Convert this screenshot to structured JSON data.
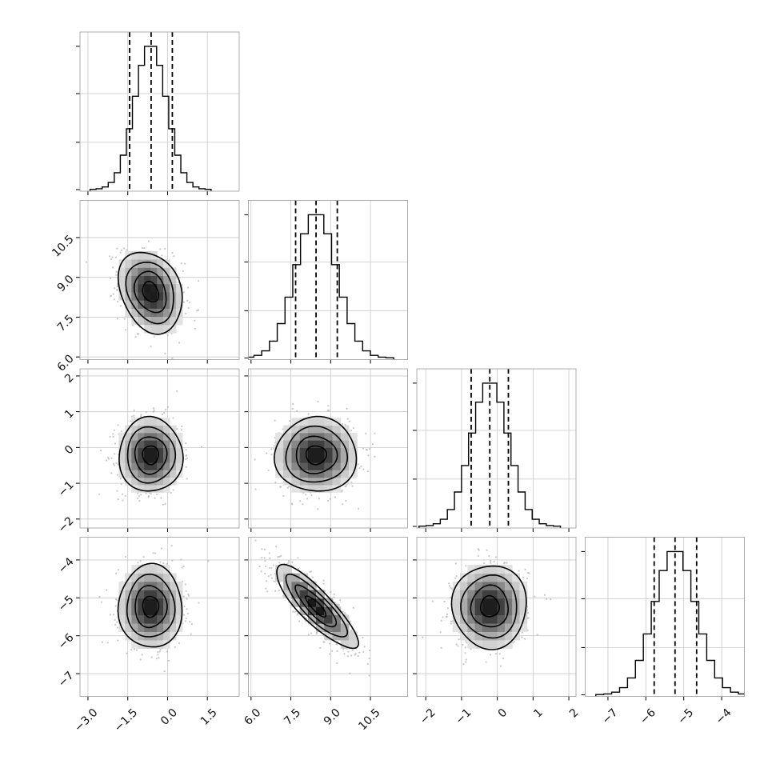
{
  "figure": {
    "type": "corner_plot",
    "n_params": 4,
    "title": ""
  },
  "colors": {
    "line": "#000000",
    "grid": "#c8c8c8",
    "frame": "#999999",
    "scatter": "#b0b0b0",
    "density_dark": "#111111"
  },
  "chart_data": {
    "type": "corner",
    "title": "",
    "params": [
      {
        "name": "",
        "range": [
          -3.3,
          2.7
        ],
        "ticks": [
          -3.0,
          -1.5,
          0.0,
          1.5
        ],
        "tick_labels": [
          "−3.0",
          "−1.5",
          "0.0",
          "1.5"
        ],
        "mean": -0.64,
        "sd": 0.6,
        "quantiles": [
          -1.43,
          -0.62,
          0.18
        ]
      },
      {
        "name": "",
        "range": [
          5.9,
          11.9
        ],
        "ticks": [
          6.0,
          7.5,
          9.0,
          10.5
        ],
        "tick_labels": [
          "6.0",
          "7.5",
          "9.0",
          "10.5"
        ],
        "mean": 8.45,
        "sd": 0.77,
        "quantiles": [
          7.68,
          8.45,
          9.25
        ]
      },
      {
        "name": "",
        "range": [
          -2.25,
          2.2
        ],
        "ticks": [
          -2,
          -1,
          0,
          1,
          2
        ],
        "tick_labels": [
          "−2",
          "−1",
          "0",
          "1",
          "2"
        ],
        "mean": -0.21,
        "sd": 0.52,
        "quantiles": [
          -0.73,
          -0.21,
          0.31
        ]
      },
      {
        "name": "",
        "range": [
          -7.6,
          -3.4
        ],
        "ticks": [
          -7,
          -6,
          -5,
          -4
        ],
        "tick_labels": [
          "−7",
          "−6",
          "−5",
          "−4"
        ],
        "mean": -5.23,
        "sd": 0.55,
        "quantiles": [
          -5.78,
          -5.23,
          -4.66
        ]
      }
    ],
    "correlations": [
      [
        1.0,
        -0.25,
        0.0,
        0.0
      ],
      [
        -0.25,
        1.0,
        0.0,
        -0.85
      ],
      [
        0.0,
        0.0,
        1.0,
        0.0
      ],
      [
        0.0,
        -0.85,
        0.0,
        1.0
      ]
    ],
    "contour_levels_sigma": [
      0.5,
      1.0,
      1.5,
      2.0
    ],
    "histogram_bins": 20,
    "quantile_lines": "dashed (16%, 50%, 84%)",
    "scatter_points_shown": true,
    "grid": true,
    "legend": "none",
    "xlabel": "",
    "ylabel": ""
  }
}
